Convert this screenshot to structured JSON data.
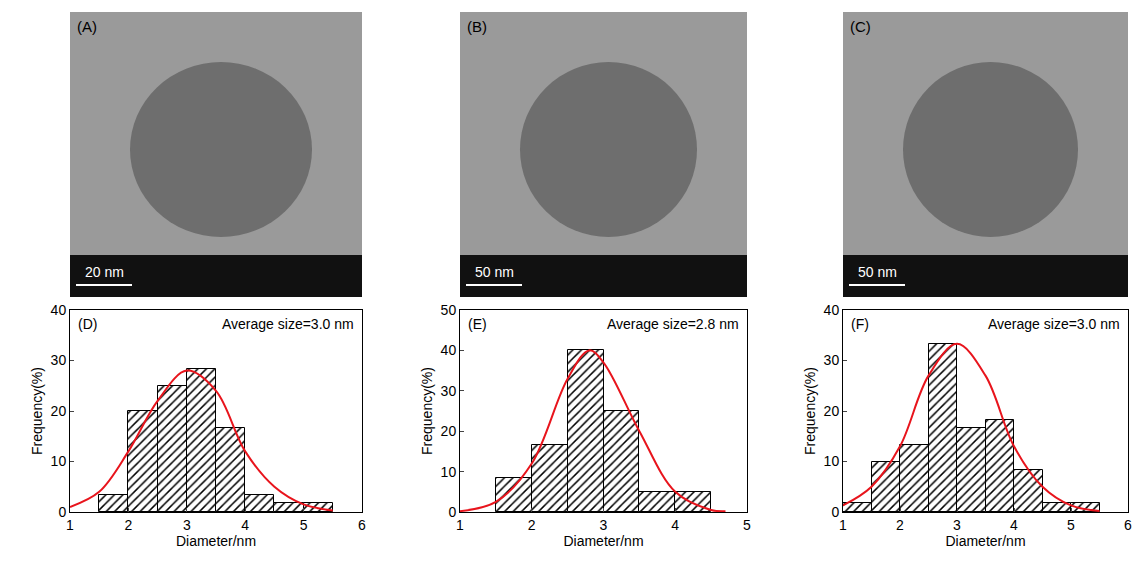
{
  "micrographs": [
    {
      "label": "(A)",
      "scale_bar": "20 nm"
    },
    {
      "label": "(B)",
      "scale_bar": "50 nm"
    },
    {
      "label": "(C)",
      "scale_bar": "50 nm"
    }
  ],
  "chart_data": [
    {
      "type": "histogram",
      "label": "(D)",
      "annotation": "Average size=3.0 nm",
      "x_label": "Diameter/nm",
      "y_label": "Frequency(%)",
      "bins": [
        1.5,
        2,
        2.5,
        3,
        3.5,
        4,
        4.5,
        5,
        5.5
      ],
      "values": [
        3.3,
        20,
        25,
        28.3,
        16.7,
        3.3,
        1.7,
        1.7
      ],
      "color": "#000000",
      "fit": {
        "color": "#e8141c",
        "x": [
          1,
          1.5,
          2,
          2.5,
          3,
          3.5,
          4,
          4.5,
          5,
          5.5
        ],
        "values": [
          1,
          4,
          12,
          22,
          28,
          24,
          12,
          5,
          1.5,
          0.3
        ]
      },
      "xlim": [
        1,
        6
      ],
      "xticks": [
        1,
        2,
        3,
        4,
        5,
        6
      ],
      "ylim": [
        0,
        40
      ],
      "yticks": [
        0,
        10,
        20,
        30,
        40
      ]
    },
    {
      "type": "histogram",
      "label": "(E)",
      "annotation": "Average size=2.8 nm",
      "x_label": "Diameter/nm",
      "y_label": "Frequency(%)",
      "bins": [
        1.5,
        2,
        2.5,
        3,
        3.5,
        4,
        4.5
      ],
      "values": [
        8.3,
        16.7,
        40,
        25,
        5,
        5
      ],
      "color": "#000000",
      "fit": {
        "color": "#e8141c",
        "x": [
          1,
          1.5,
          2,
          2.5,
          2.8,
          3,
          3.5,
          4,
          4.5,
          4.7
        ],
        "values": [
          0.2,
          2.5,
          12,
          33,
          40,
          37,
          20,
          5,
          0.5,
          0.2
        ]
      },
      "xlim": [
        1,
        5
      ],
      "xticks": [
        1,
        2,
        3,
        4,
        5
      ],
      "ylim": [
        0,
        50
      ],
      "yticks": [
        0,
        10,
        20,
        30,
        40,
        50
      ]
    },
    {
      "type": "histogram",
      "label": "(F)",
      "annotation": "Average size=3.0 nm",
      "x_label": "Diameter/nm",
      "y_label": "Frequency(%)",
      "bins": [
        1,
        1.5,
        2,
        2.5,
        3,
        3.5,
        4,
        4.5,
        5,
        5.5
      ],
      "values": [
        1.7,
        10,
        13.3,
        33.3,
        16.7,
        18.3,
        8.3,
        1.7,
        1.7
      ],
      "color": "#000000",
      "fit": {
        "color": "#e8141c",
        "x": [
          1,
          1.5,
          2,
          2.5,
          3,
          3.5,
          4,
          4.5,
          5,
          5.5
        ],
        "values": [
          1.3,
          5,
          13,
          27,
          33.3,
          27,
          13,
          5,
          1.3,
          0.2
        ]
      },
      "xlim": [
        1,
        6
      ],
      "xticks": [
        1,
        2,
        3,
        4,
        5,
        6
      ],
      "ylim": [
        0,
        40
      ],
      "yticks": [
        0,
        10,
        20,
        30,
        40
      ]
    }
  ]
}
